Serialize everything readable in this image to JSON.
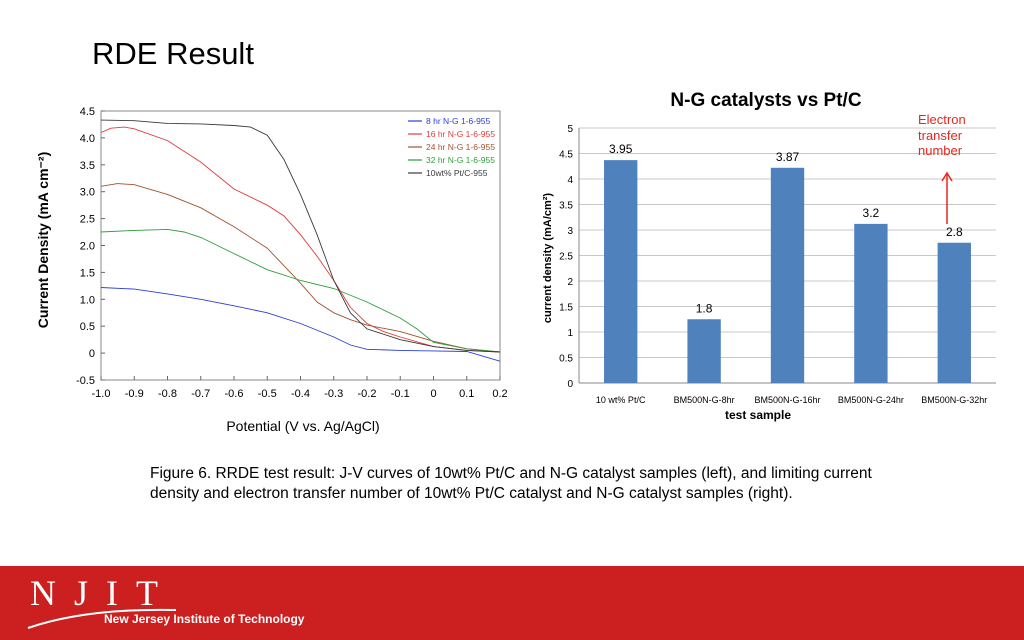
{
  "slide": {
    "title": "RDE Result",
    "caption": "Figure 6. RRDE test result: J-V curves of 10wt% Pt/C and N-G catalyst samples (left), and limiting current density and electron transfer number of 10wt% Pt/C catalyst and N-G catalyst samples (right).",
    "annotation": "Electron transfer number",
    "footer_logo": "NJIT",
    "footer_institute": "New Jersey Institute of Technology"
  },
  "colors": {
    "bar": "#4f81bd",
    "annotation": "#e8261c",
    "footer": "#cc1f1f"
  },
  "chart_data": [
    {
      "type": "line",
      "title": "",
      "xlabel": "Potential (V vs. Ag/AgCl)",
      "ylabel": "Current Density (mA cm⁻²)",
      "xlim": [
        -1.0,
        0.2
      ],
      "ylim": [
        -0.5,
        4.5
      ],
      "xticks": [
        "-1.0",
        "-0.9",
        "-0.8",
        "-0.7",
        "-0.6",
        "-0.5",
        "-0.4",
        "-0.3",
        "-0.2",
        "-0.1",
        "0",
        "0.1",
        "0.2"
      ],
      "yticks": [
        "-0.5",
        "0",
        "0.5",
        "1.0",
        "1.5",
        "2.0",
        "2.5",
        "3.0",
        "3.5",
        "4.0",
        "4.5"
      ],
      "legend_position": "top-right",
      "series": [
        {
          "name": "8 hr N-G 1-6-955",
          "color": "#2b3fd6",
          "x": [
            -1.0,
            -0.9,
            -0.8,
            -0.7,
            -0.6,
            -0.5,
            -0.4,
            -0.3,
            -0.25,
            -0.2,
            -0.1,
            0.0,
            0.1,
            0.2
          ],
          "y": [
            1.22,
            1.19,
            1.1,
            1.0,
            0.88,
            0.75,
            0.55,
            0.3,
            0.15,
            0.07,
            0.05,
            0.04,
            0.03,
            -0.15
          ]
        },
        {
          "name": "16 hr N-G 1-6-955",
          "color": "#e23b3b",
          "x": [
            -1.0,
            -0.97,
            -0.93,
            -0.9,
            -0.8,
            -0.7,
            -0.6,
            -0.5,
            -0.45,
            -0.4,
            -0.35,
            -0.3,
            -0.25,
            -0.2,
            -0.15,
            -0.1,
            0.0,
            0.1,
            0.2
          ],
          "y": [
            4.1,
            4.18,
            4.2,
            4.17,
            3.95,
            3.55,
            3.05,
            2.75,
            2.55,
            2.2,
            1.8,
            1.35,
            0.85,
            0.55,
            0.4,
            0.3,
            0.12,
            0.05,
            0.02
          ]
        },
        {
          "name": "24 hr N-G 1-6-955",
          "color": "#a0522d",
          "x": [
            -1.0,
            -0.95,
            -0.9,
            -0.8,
            -0.7,
            -0.6,
            -0.5,
            -0.4,
            -0.35,
            -0.3,
            -0.25,
            -0.2,
            -0.1,
            0.0,
            0.1,
            0.2
          ],
          "y": [
            3.1,
            3.15,
            3.13,
            2.95,
            2.7,
            2.35,
            1.95,
            1.3,
            0.95,
            0.75,
            0.62,
            0.52,
            0.4,
            0.22,
            0.08,
            0.02
          ]
        },
        {
          "name": "32 hr N-G 1-6-955",
          "color": "#2e9e3c",
          "x": [
            -1.0,
            -0.9,
            -0.8,
            -0.75,
            -0.7,
            -0.6,
            -0.5,
            -0.4,
            -0.3,
            -0.2,
            -0.1,
            -0.05,
            0.0,
            0.1,
            0.2
          ],
          "y": [
            2.25,
            2.28,
            2.3,
            2.25,
            2.15,
            1.85,
            1.55,
            1.35,
            1.2,
            0.95,
            0.65,
            0.45,
            0.2,
            0.08,
            0.02
          ]
        },
        {
          "name": "10wt% Pt/C-955",
          "color": "#3a3a3a",
          "x": [
            -1.0,
            -0.9,
            -0.8,
            -0.7,
            -0.6,
            -0.55,
            -0.5,
            -0.45,
            -0.4,
            -0.35,
            -0.3,
            -0.25,
            -0.2,
            -0.1,
            0.0,
            0.1,
            0.2
          ],
          "y": [
            4.33,
            4.32,
            4.27,
            4.26,
            4.23,
            4.2,
            4.05,
            3.6,
            2.95,
            2.2,
            1.35,
            0.75,
            0.45,
            0.25,
            0.12,
            0.05,
            0.02
          ]
        }
      ]
    },
    {
      "type": "bar",
      "title": "N-G catalysts vs Pt/C",
      "xlabel": "test sample",
      "ylabel": "current density (mA/cm²)",
      "ylim": [
        0,
        5
      ],
      "yticks": [
        "0",
        "0.5",
        "1",
        "1.5",
        "2",
        "2.5",
        "3",
        "3.5",
        "4",
        "4.5",
        "5"
      ],
      "grid": true,
      "categories": [
        "10 wt% Pt/C",
        "BM500N-G-8hr",
        "BM500N-G-16hr",
        "BM500N-G-24hr",
        "BM500N-G-32hr"
      ],
      "values": [
        4.37,
        1.25,
        4.22,
        3.12,
        2.75
      ],
      "data_labels": [
        "3.95",
        "1.8",
        "3.87",
        "3.2",
        "2.8"
      ]
    }
  ]
}
